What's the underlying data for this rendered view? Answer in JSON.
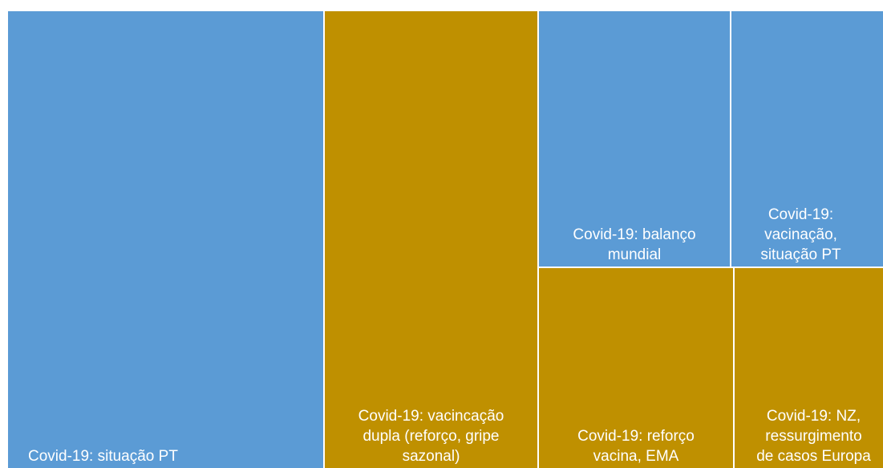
{
  "chart_data": {
    "type": "treemap",
    "colors": {
      "blue": "#5b9bd5",
      "gold": "#bf9000",
      "label": "#ffffff"
    },
    "tiles": [
      {
        "label": "Covid-19: situação PT",
        "color": "blue",
        "value": 19.8
      },
      {
        "label": "Covid-19: vacincação\ndupla (reforço, gripe\nsazonal)",
        "color": "gold",
        "value": 11.1
      },
      {
        "label": "Covid-19: balanço\nmundial",
        "color": "blue",
        "value": 5.0
      },
      {
        "label": "Covid-19:\nvacinação,\nsituação PT",
        "color": "blue",
        "value": 3.9
      },
      {
        "label": "Covid-19: reforço\nvacina, EMA",
        "color": "gold",
        "value": 3.9
      },
      {
        "label": "Covid-19: NZ,\nressurgimento\nde casos Europa",
        "color": "gold",
        "value": 3.0
      }
    ]
  }
}
